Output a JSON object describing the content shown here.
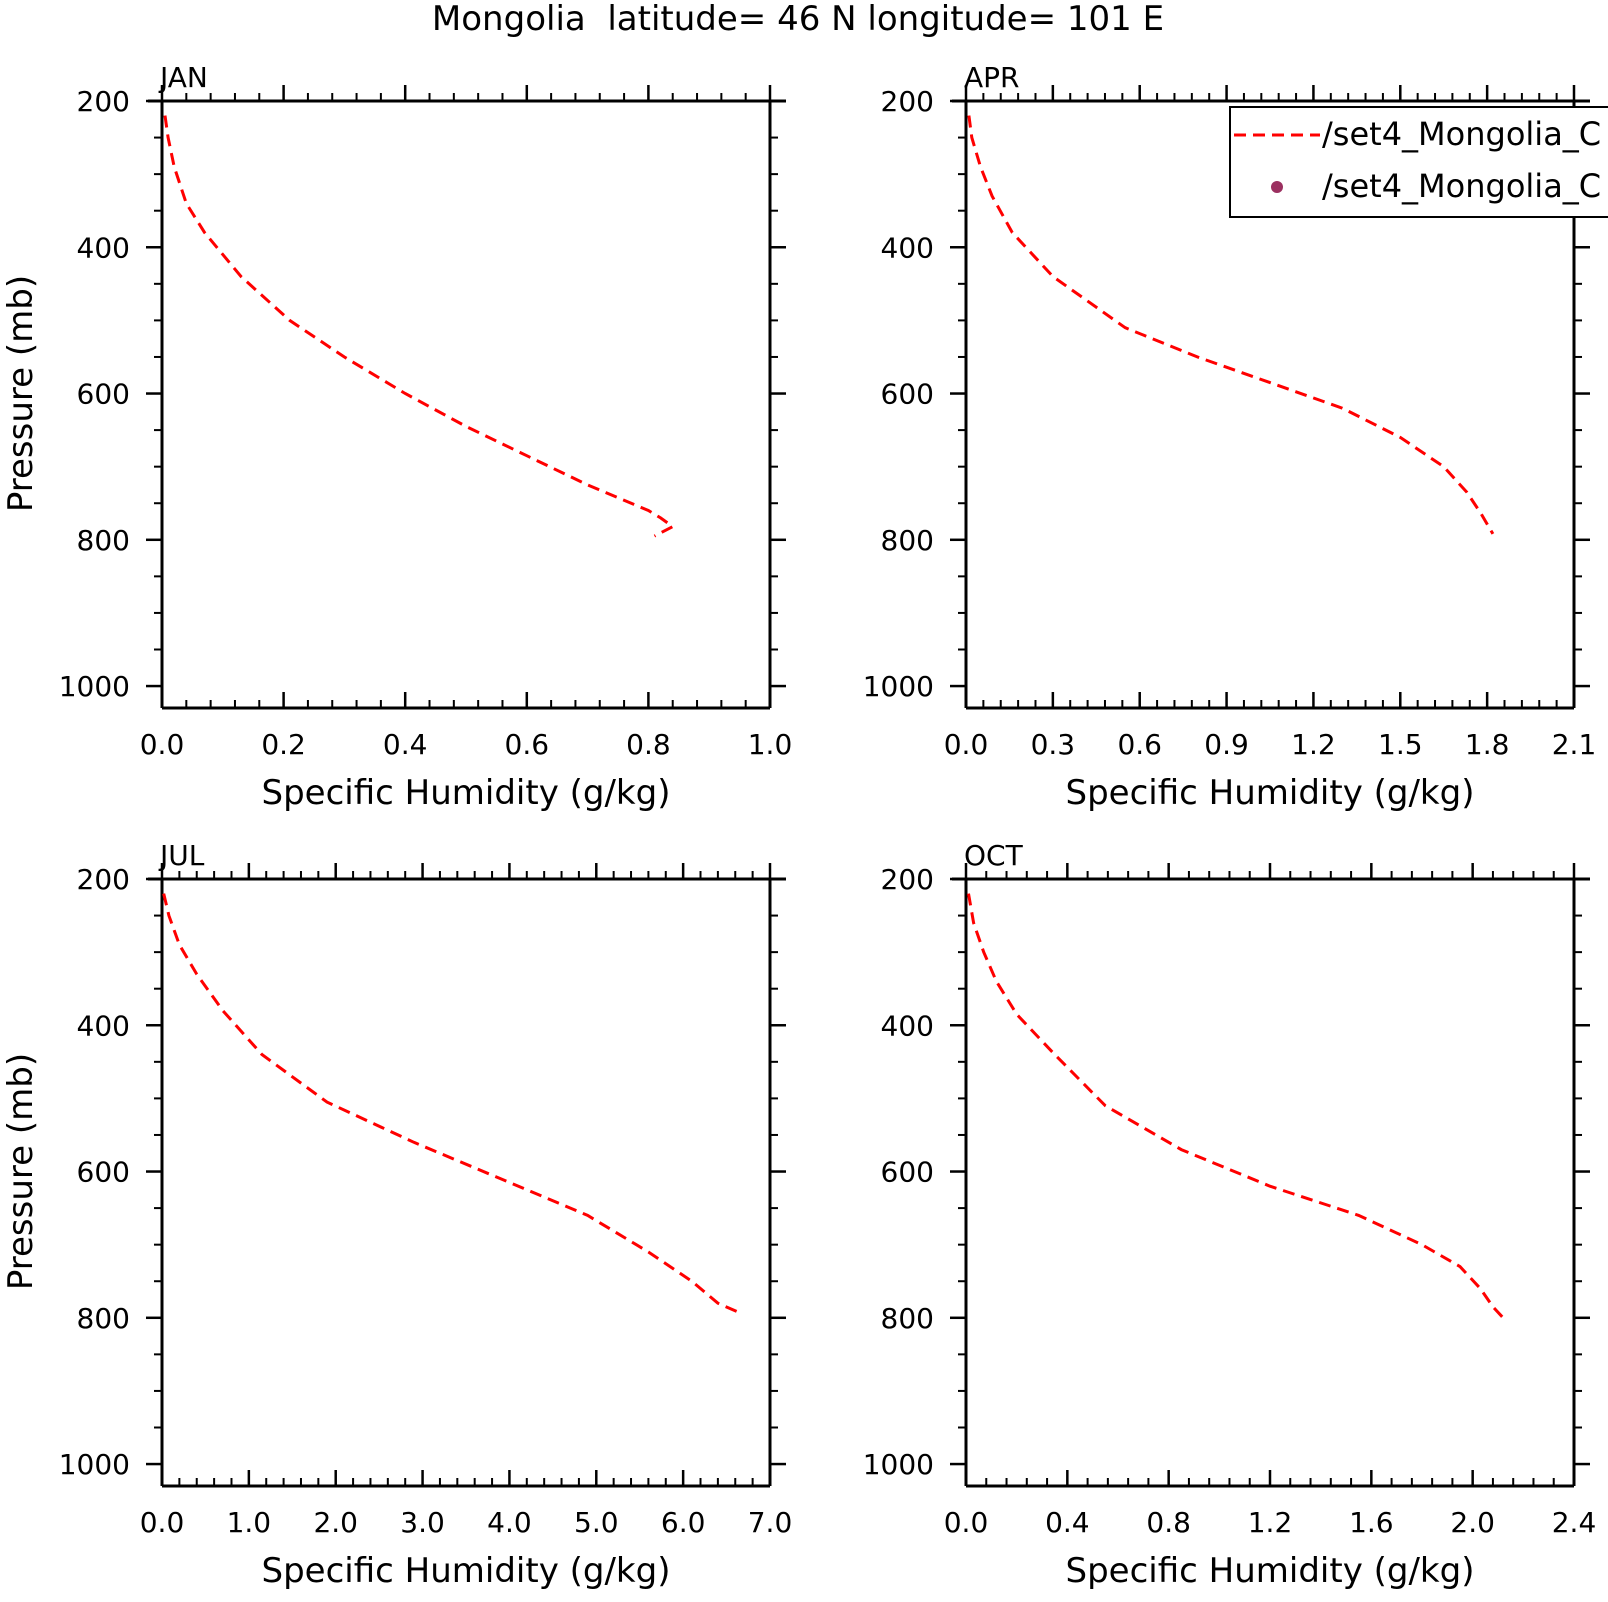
{
  "title": "Mongolia  latitude= 46 N longitude= 101 E",
  "colors": {
    "model_line": "#ff0000",
    "obs_marker": "#9b3060",
    "axis": "#000000"
  },
  "legend": {
    "placement": "top-right",
    "entries": [
      {
        "label": "/set4_Mongolia_C",
        "style": "dashed-line",
        "color": "#ff0000"
      },
      {
        "label": "/set4_Mongolia_C",
        "style": "dot",
        "color": "#9b3060"
      }
    ]
  },
  "chart_data": [
    {
      "type": "line",
      "panel_label": "JAN",
      "xlabel": "Specific Humidity (g/kg)",
      "ylabel": "Pressure (mb)",
      "xlim": [
        0,
        1.0
      ],
      "ylim": [
        200,
        1000
      ],
      "y_inverted": true,
      "xticks": [
        "0.0",
        "0.2",
        "0.4",
        "0.6",
        "0.8",
        "1.0"
      ],
      "yticks": [
        "200",
        "400",
        "600",
        "800",
        "1000"
      ],
      "series": [
        {
          "x": [
            0.005,
            0.01,
            0.02,
            0.04,
            0.07,
            0.13,
            0.21,
            0.3,
            0.4,
            0.5,
            0.6,
            0.7,
            0.8,
            0.82,
            0.84,
            0.81
          ],
          "y": [
            220,
            250,
            290,
            340,
            380,
            440,
            500,
            550,
            600,
            645,
            685,
            725,
            760,
            770,
            782,
            795
          ]
        }
      ]
    },
    {
      "type": "line",
      "panel_label": "APR",
      "xlabel": "Specific Humidity (g/kg)",
      "ylabel": "",
      "xlim": [
        0,
        2.1
      ],
      "ylim": [
        200,
        1000
      ],
      "y_inverted": true,
      "xticks": [
        "0.0",
        "0.3",
        "0.6",
        "0.9",
        "1.2",
        "1.5",
        "1.8",
        "2.1"
      ],
      "yticks": [
        "200",
        "400",
        "600",
        "800",
        "1000"
      ],
      "series": [
        {
          "x": [
            0.01,
            0.02,
            0.05,
            0.09,
            0.16,
            0.3,
            0.55,
            0.8,
            1.05,
            1.3,
            1.5,
            1.65,
            1.73,
            1.78,
            1.82
          ],
          "y": [
            220,
            250,
            290,
            330,
            380,
            440,
            510,
            550,
            585,
            620,
            660,
            700,
            735,
            765,
            792
          ]
        }
      ]
    },
    {
      "type": "line",
      "panel_label": "JUL",
      "xlabel": "Specific Humidity (g/kg)",
      "ylabel": "Pressure (mb)",
      "xlim": [
        0,
        7.0
      ],
      "ylim": [
        200,
        1000
      ],
      "y_inverted": true,
      "xticks": [
        "0.0",
        "1.0",
        "2.0",
        "3.0",
        "4.0",
        "5.0",
        "6.0",
        "7.0"
      ],
      "yticks": [
        "200",
        "400",
        "600",
        "800",
        "1000"
      ],
      "series": [
        {
          "x": [
            0.02,
            0.08,
            0.2,
            0.4,
            0.7,
            1.15,
            1.9,
            2.9,
            3.9,
            4.9,
            5.6,
            6.1,
            6.4,
            6.65
          ],
          "y": [
            220,
            250,
            290,
            330,
            380,
            440,
            505,
            560,
            610,
            660,
            710,
            750,
            780,
            793
          ]
        }
      ]
    },
    {
      "type": "line",
      "panel_label": "OCT",
      "xlabel": "Specific Humidity (g/kg)",
      "ylabel": "",
      "xlim": [
        0,
        2.4
      ],
      "ylim": [
        200,
        1000
      ],
      "y_inverted": true,
      "xticks": [
        "0.0",
        "0.4",
        "0.8",
        "1.2",
        "1.6",
        "2.0",
        "2.4"
      ],
      "yticks": [
        "200",
        "400",
        "600",
        "800",
        "1000"
      ],
      "series": [
        {
          "x": [
            0.01,
            0.03,
            0.07,
            0.12,
            0.2,
            0.35,
            0.55,
            0.85,
            1.2,
            1.55,
            1.8,
            1.95,
            2.03,
            2.08,
            2.12
          ],
          "y": [
            220,
            260,
            300,
            340,
            385,
            440,
            510,
            570,
            620,
            660,
            700,
            730,
            760,
            785,
            800
          ]
        }
      ]
    }
  ]
}
